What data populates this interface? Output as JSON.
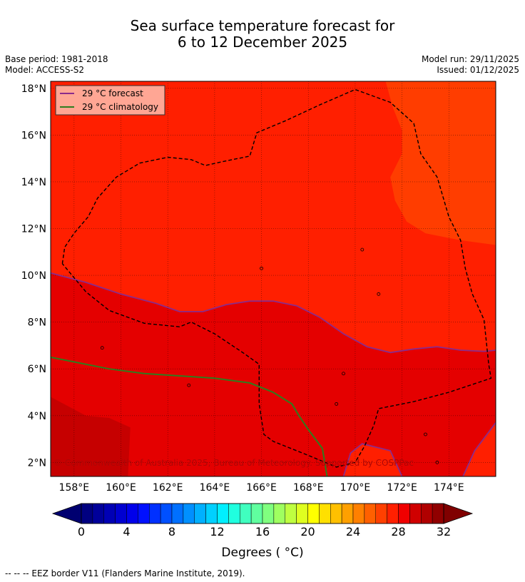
{
  "header": {
    "title_line1": "Sea surface temperature forecast for",
    "title_line2": "6 to 12 December 2025",
    "base_period": "Base period: 1981-2018",
    "model": "Model: ACCESS-S2",
    "model_run": "Model run: 29/11/2025",
    "issued": "Issued: 01/12/2025"
  },
  "chart_data": {
    "type": "heatmap",
    "title": "Sea surface temperature forecast for 6 to 12 December 2025",
    "xlabel": "",
    "ylabel": "",
    "x_ticks": [
      "158°E",
      "160°E",
      "162°E",
      "164°E",
      "166°E",
      "168°E",
      "170°E",
      "172°E",
      "174°E"
    ],
    "x_tick_values": [
      158,
      160,
      162,
      164,
      166,
      168,
      170,
      172,
      174
    ],
    "y_ticks": [
      "18°N",
      "16°N",
      "14°N",
      "12°N",
      "10°N",
      "8°N",
      "6°N",
      "4°N",
      "2°N"
    ],
    "y_tick_values": [
      18,
      16,
      14,
      12,
      10,
      8,
      6,
      4,
      2
    ],
    "xlim": [
      157.0,
      176.0
    ],
    "ylim": [
      1.4,
      18.3
    ],
    "grid": true,
    "legend": [
      {
        "label": "29 °C  forecast",
        "color": "#8b2b8b"
      },
      {
        "label": "29 °C  climatology",
        "color": "#2e7d1e"
      }
    ],
    "legend_position": "top-left",
    "forecast_29C_contour": [
      [
        157.0,
        10.1
      ],
      [
        158.5,
        9.7
      ],
      [
        160.0,
        9.2
      ],
      [
        161.5,
        8.8
      ],
      [
        162.5,
        8.45
      ],
      [
        163.5,
        8.45
      ],
      [
        164.5,
        8.75
      ],
      [
        165.5,
        8.9
      ],
      [
        166.5,
        8.9
      ],
      [
        167.5,
        8.7
      ],
      [
        168.5,
        8.2
      ],
      [
        169.5,
        7.5
      ],
      [
        170.5,
        6.95
      ],
      [
        171.5,
        6.7
      ],
      [
        172.5,
        6.85
      ],
      [
        173.5,
        6.95
      ],
      [
        174.5,
        6.8
      ],
      [
        175.5,
        6.75
      ],
      [
        176.0,
        6.8
      ]
    ],
    "climatology_29C_contour": [
      [
        157.0,
        6.5
      ],
      [
        158.0,
        6.3
      ],
      [
        159.5,
        6.0
      ],
      [
        161.0,
        5.8
      ],
      [
        162.5,
        5.7
      ],
      [
        164.0,
        5.6
      ],
      [
        165.5,
        5.4
      ],
      [
        166.5,
        5.0
      ],
      [
        167.3,
        4.5
      ],
      [
        167.6,
        4.0
      ],
      [
        168.0,
        3.4
      ],
      [
        168.6,
        2.6
      ],
      [
        168.8,
        1.4
      ]
    ],
    "eez_border": [
      [
        157.5,
        10.5
      ],
      [
        157.6,
        11.2
      ],
      [
        158.0,
        11.8
      ],
      [
        158.6,
        12.5
      ],
      [
        159.0,
        13.3
      ],
      [
        159.8,
        14.2
      ],
      [
        160.8,
        14.8
      ],
      [
        162.0,
        15.05
      ],
      [
        163.0,
        14.95
      ],
      [
        163.6,
        14.7
      ],
      [
        164.5,
        14.9
      ],
      [
        165.5,
        15.1
      ],
      [
        165.8,
        16.1
      ],
      [
        167.0,
        16.6
      ],
      [
        168.5,
        17.3
      ],
      [
        170.0,
        17.95
      ],
      [
        171.5,
        17.4
      ],
      [
        172.5,
        16.5
      ],
      [
        172.8,
        15.2
      ],
      [
        173.5,
        14.2
      ],
      [
        174.0,
        12.5
      ],
      [
        174.5,
        11.5
      ],
      [
        174.7,
        10.3
      ],
      [
        175.0,
        9.2
      ],
      [
        175.5,
        8.1
      ],
      [
        175.7,
        6.2
      ],
      [
        175.8,
        5.6
      ],
      [
        174.0,
        5.0
      ],
      [
        172.5,
        4.6
      ],
      [
        171.0,
        4.3
      ],
      [
        170.8,
        3.6
      ],
      [
        170.4,
        2.7
      ],
      [
        170.0,
        2.0
      ],
      [
        169.2,
        1.8
      ],
      [
        168.0,
        2.3
      ],
      [
        166.5,
        2.9
      ],
      [
        166.1,
        3.2
      ],
      [
        165.9,
        4.5
      ],
      [
        165.9,
        6.2
      ],
      [
        165.2,
        6.7
      ],
      [
        164.0,
        7.5
      ],
      [
        163.0,
        8.0
      ],
      [
        162.5,
        7.8
      ],
      [
        161.0,
        7.95
      ],
      [
        159.5,
        8.5
      ],
      [
        158.5,
        9.3
      ],
      [
        157.5,
        10.5
      ]
    ],
    "islands": [
      [
        159.2,
        6.9
      ],
      [
        162.9,
        5.3
      ],
      [
        169.2,
        4.5
      ],
      [
        169.5,
        5.8
      ],
      [
        173.0,
        3.2
      ],
      [
        173.5,
        2.0
      ],
      [
        166.0,
        10.3
      ],
      [
        170.3,
        11.1
      ],
      [
        171.0,
        9.2
      ]
    ],
    "colorbar": {
      "label": "Degrees ( °C)",
      "min": 0,
      "max": 32,
      "step": 1,
      "tick_labels": [
        "0",
        "4",
        "8",
        "12",
        "16",
        "20",
        "24",
        "28",
        "32"
      ],
      "tick_values": [
        0,
        4,
        8,
        12,
        16,
        20,
        24,
        28,
        32
      ],
      "extend": "both"
    },
    "regions_temperature_band_C": [
      {
        "band": "28-29",
        "area": "north-east"
      },
      {
        "band": "29-30",
        "area": "north"
      },
      {
        "band": "30-31",
        "area": "centre and south"
      },
      {
        "band": "31-32",
        "area": "south-west corner"
      }
    ],
    "copyright": "© Commonwealth of Australia 2025, Bureau of Meteorology. Supported by COSPPac"
  },
  "footer": {
    "eez_note": "--  --  -- EEZ border V11 (Flanders Marine Institute, 2019)."
  },
  "colors": {
    "c28_29": "#ff3d00",
    "c29_30": "#ff1f00",
    "c30_31": "#e40000",
    "c31_32": "#c60000",
    "forecast_line": "#8b2b8b",
    "climatology_line": "#2e7d1e"
  }
}
